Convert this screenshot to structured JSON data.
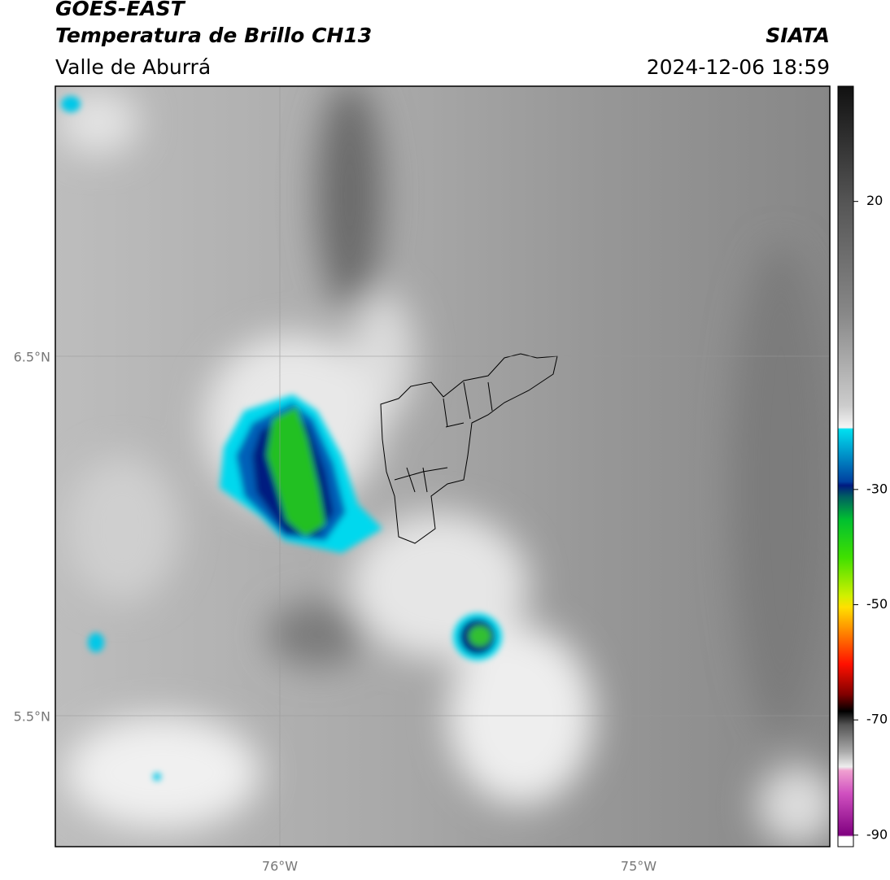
{
  "header": {
    "title": "GOES-EAST",
    "subtitle": "Temperatura de Brillo CH13",
    "region": "Valle de Aburrá",
    "source": "SIATA",
    "datetime": "2024-12-06 18:59"
  },
  "map": {
    "lat_labels": [
      "6.5°N",
      "5.5°N"
    ],
    "lon_labels": [
      "76°W",
      "75°W"
    ]
  },
  "colorbar": {
    "range": [
      -92,
      40
    ],
    "ticks": [
      20,
      -30,
      -50,
      -70,
      -90
    ]
  }
}
